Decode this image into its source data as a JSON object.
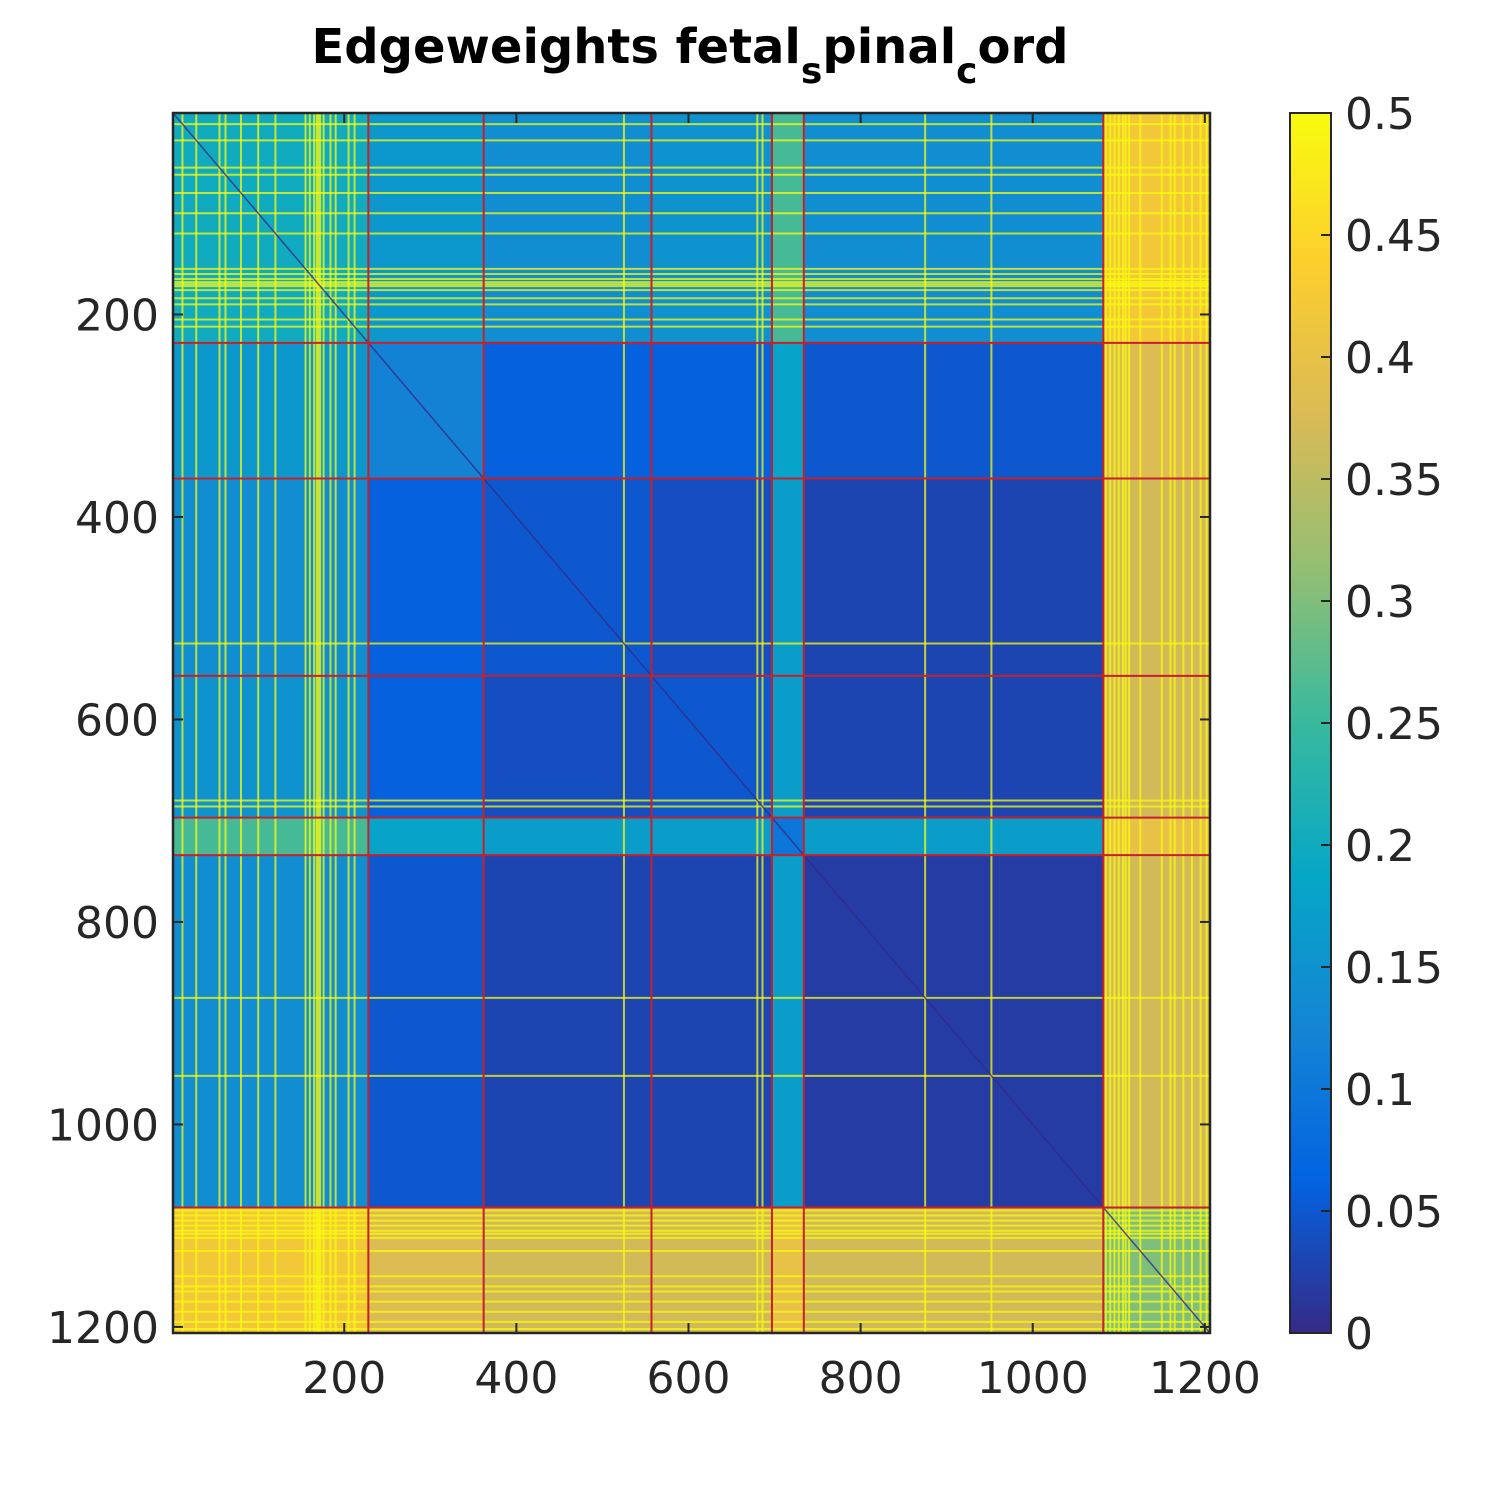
{
  "chart_data": {
    "type": "heatmap",
    "title": {
      "base": "Edgeweights fetal",
      "sub1": "s",
      "mid": "pinal",
      "sub2": "c",
      "end": "ord"
    },
    "xlabel": "",
    "ylabel": "",
    "xlim": [
      1,
      1206
    ],
    "ylim": [
      1,
      1206
    ],
    "y_axis_reversed": true,
    "x_ticks": [
      200,
      400,
      600,
      800,
      1000,
      1200
    ],
    "x_tick_labels": [
      "200",
      "400",
      "600",
      "800",
      "1000",
      "1200"
    ],
    "y_ticks": [
      200,
      400,
      600,
      800,
      1000,
      1200
    ],
    "y_tick_labels": [
      "200",
      "400",
      "600",
      "800",
      "1000",
      "1200"
    ],
    "colorbar": {
      "range": [
        0,
        0.5
      ],
      "ticks": [
        0,
        0.05,
        0.1,
        0.15,
        0.2,
        0.25,
        0.3,
        0.35,
        0.4,
        0.45,
        0.5
      ],
      "tick_labels": [
        "0",
        "0.05",
        "0.1",
        "0.15",
        "0.2",
        "0.25",
        "0.3",
        "0.35",
        "0.4",
        "0.45",
        "0.5"
      ],
      "colormap": "parula",
      "stops": [
        "#352a87",
        "#0363e1",
        "#1485d4",
        "#06a7c6",
        "#38b99e",
        "#92bf73",
        "#d9ba56",
        "#fcce2e",
        "#f9fb0e"
      ]
    },
    "cluster_boundaries": [
      228,
      362,
      557,
      697,
      734,
      1082
    ],
    "boundary_color": "#c8202a",
    "block_mean_values": [
      [
        0.2,
        0.16,
        0.14,
        0.15,
        0.26,
        0.14,
        0.42
      ],
      [
        0.16,
        0.12,
        0.06,
        0.06,
        0.18,
        0.05,
        0.38
      ],
      [
        0.14,
        0.06,
        0.05,
        0.04,
        0.17,
        0.03,
        0.37
      ],
      [
        0.15,
        0.06,
        0.04,
        0.05,
        0.17,
        0.03,
        0.37
      ],
      [
        0.26,
        0.18,
        0.17,
        0.17,
        0.1,
        0.17,
        0.4
      ],
      [
        0.14,
        0.05,
        0.03,
        0.03,
        0.17,
        0.02,
        0.37
      ],
      [
        0.42,
        0.38,
        0.37,
        0.37,
        0.4,
        0.37,
        0.3
      ]
    ],
    "bright_lines": [
      12,
      28,
      55,
      62,
      80,
      100,
      120,
      155,
      160,
      165,
      168,
      170,
      172,
      176,
      184,
      190,
      205,
      212,
      525,
      680,
      686,
      875,
      952,
      1085,
      1090,
      1095,
      1100,
      1105,
      1108,
      1112,
      1125,
      1150,
      1160,
      1165,
      1175,
      1185,
      1195,
      1202
    ]
  }
}
